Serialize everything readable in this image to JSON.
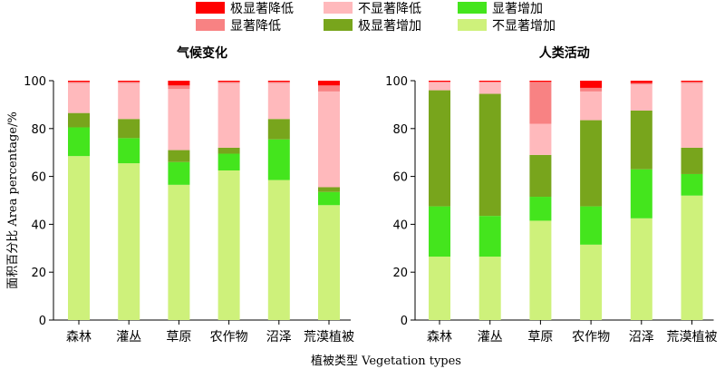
{
  "legend": [
    {
      "key": "sig_dec_extreme",
      "label": "极显著降低",
      "color": "#ff0000"
    },
    {
      "key": "insig_dec",
      "label": "不显著降低",
      "color": "#ffb9bc"
    },
    {
      "key": "sig_inc",
      "label": "显著增加",
      "color": "#44e51d"
    },
    {
      "key": "sig_dec",
      "label": "显著降低",
      "color": "#f88283"
    },
    {
      "key": "sig_inc_extreme",
      "label": "极显著增加",
      "color": "#78a51c"
    },
    {
      "key": "insig_inc",
      "label": "不显著增加",
      "color": "#cef17b"
    }
  ],
  "y_axis_label": "面积百分比 Area percentage/%",
  "x_axis_label": "植被类型 Vegetation types",
  "chart_data": [
    {
      "type": "bar",
      "stacked": true,
      "title": "气候变化",
      "categories": [
        "森林",
        "灌丛",
        "草原",
        "农作物",
        "沼泽",
        "荒漠植被"
      ],
      "ylim": [
        0,
        100
      ],
      "yticks": [
        0,
        20,
        40,
        60,
        80,
        100
      ],
      "series": [
        {
          "key": "insig_inc",
          "name": "不显著增加",
          "values": [
            68.5,
            65.5,
            56.5,
            62.5,
            58.5,
            48.0
          ]
        },
        {
          "key": "sig_inc",
          "name": "显著增加",
          "values": [
            12.0,
            10.5,
            9.5,
            7.0,
            17.0,
            5.5
          ]
        },
        {
          "key": "sig_inc_extreme",
          "name": "极显著增加",
          "values": [
            6.0,
            8.0,
            5.0,
            2.5,
            8.5,
            2.0
          ]
        },
        {
          "key": "insig_dec",
          "name": "不显著降低",
          "values": [
            12.5,
            15.0,
            25.5,
            27.0,
            15.0,
            40.0
          ]
        },
        {
          "key": "sig_dec",
          "name": "显著降低",
          "values": [
            0.5,
            0.5,
            1.5,
            0.5,
            0.5,
            2.5
          ]
        },
        {
          "key": "sig_dec_extreme",
          "name": "极显著降低",
          "values": [
            0.5,
            0.5,
            2.0,
            0.5,
            0.5,
            2.0
          ]
        }
      ]
    },
    {
      "type": "bar",
      "stacked": true,
      "title": "人类活动",
      "categories": [
        "森林",
        "灌丛",
        "草原",
        "农作物",
        "沼泽",
        "荒漠植被"
      ],
      "ylim": [
        0,
        100
      ],
      "yticks": [
        0,
        20,
        40,
        60,
        80,
        100
      ],
      "series": [
        {
          "key": "insig_inc",
          "name": "不显著增加",
          "values": [
            26.5,
            26.5,
            41.5,
            31.5,
            42.5,
            52.0
          ]
        },
        {
          "key": "sig_inc",
          "name": "显著增加",
          "values": [
            21.0,
            17.0,
            10.0,
            16.0,
            20.5,
            9.0
          ]
        },
        {
          "key": "sig_inc_extreme",
          "name": "极显著增加",
          "values": [
            48.5,
            51.0,
            17.5,
            36.0,
            24.5,
            11.0
          ]
        },
        {
          "key": "insig_dec",
          "name": "不显著降低",
          "values": [
            3.5,
            5.0,
            13.0,
            12.0,
            11.0,
            27.0
          ]
        },
        {
          "key": "sig_dec",
          "name": "显著降低",
          "values": [
            0.0,
            0.0,
            17.5,
            1.5,
            0.5,
            0.5
          ]
        },
        {
          "key": "sig_dec_extreme",
          "name": "极显著降低",
          "values": [
            0.5,
            0.5,
            0.5,
            3.0,
            1.0,
            0.5
          ]
        }
      ]
    }
  ]
}
